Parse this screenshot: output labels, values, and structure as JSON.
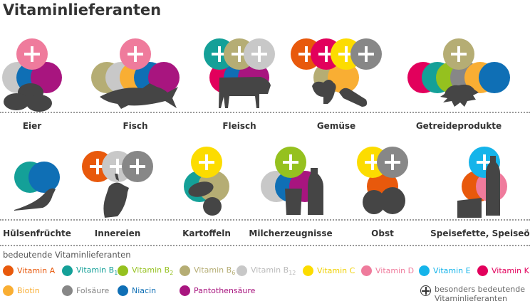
{
  "title": "Vitaminlieferanten",
  "vitamins": {
    "A": {
      "label": "Vitamin A",
      "color": "#e8590c"
    },
    "B1": {
      "label": "Vitamin B",
      "sub": "1",
      "color": "#14a098"
    },
    "B2": {
      "label": "Vitamin B",
      "sub": "2",
      "color": "#95c11f"
    },
    "B6": {
      "label": "Vitamin B",
      "sub": "6",
      "color": "#b5ad74"
    },
    "B12": {
      "label": "Vitamin B",
      "sub": "12",
      "color": "#c8c8c8"
    },
    "C": {
      "label": "Vitamin C",
      "color": "#fcdc00"
    },
    "D": {
      "label": "Vitamin D",
      "color": "#ef7b9c"
    },
    "E": {
      "label": "Vitamin E",
      "color": "#15b4ea"
    },
    "K": {
      "label": "Vitamin K",
      "color": "#e2005c"
    },
    "Biotin": {
      "label": "Biotin",
      "color": "#f9ae33"
    },
    "Fol": {
      "label": "Folsäure",
      "color": "#878787"
    },
    "Niacin": {
      "label": "Niacin",
      "color": "#0f6fb5"
    },
    "Panto": {
      "label": "Pantothensäure",
      "color": "#a8157f"
    }
  },
  "foods": [
    {
      "name": "Eier",
      "icon": "eggs-icon",
      "special": [
        "D"
      ],
      "sources": [
        "B12",
        "Niacin",
        "Panto"
      ]
    },
    {
      "name": "Fisch",
      "icon": "fish-icon",
      "special": [
        "D"
      ],
      "sources": [
        "B6",
        "B12",
        "Biotin",
        "Niacin",
        "Panto"
      ]
    },
    {
      "name": "Fleisch",
      "icon": "cow-icon",
      "special": [
        "B1",
        "B6",
        "B12"
      ],
      "sources": [
        "K",
        "Niacin",
        "Panto"
      ]
    },
    {
      "name": "Gemüse",
      "icon": "vegetables-icon",
      "special": [
        "A",
        "K",
        "C",
        "Fol"
      ],
      "sources": [
        "B6",
        "Biotin"
      ]
    },
    {
      "name": "Getreideprodukte",
      "icon": "grain-icon",
      "special": [
        "B6"
      ],
      "sources": [
        "K",
        "B1",
        "B2",
        "Fol",
        "Biotin",
        "Niacin"
      ]
    },
    {
      "name": "Hülsenfrüchte",
      "icon": "legumes-icon",
      "special": [],
      "sources": [
        "B1",
        "Niacin"
      ]
    },
    {
      "name": "Innereien",
      "icon": "organ-icon",
      "special": [
        "A",
        "B12",
        "Fol"
      ],
      "sources": []
    },
    {
      "name": "Kartoffeln",
      "icon": "potatoes-icon",
      "special": [
        "C"
      ],
      "sources": [
        "B1",
        "B6"
      ]
    },
    {
      "name": "Milcherzeugnisse",
      "icon": "milk-icon",
      "special": [
        "B2"
      ],
      "sources": [
        "B12",
        "Niacin",
        "Panto"
      ]
    },
    {
      "name": "Obst",
      "icon": "fruit-icon",
      "special": [
        "C",
        "Fol"
      ],
      "sources": [
        "A"
      ]
    },
    {
      "name": "Speisefette, Speiseöle",
      "icon": "fats-oils-icon",
      "special": [
        "E"
      ],
      "sources": [
        "A",
        "D"
      ]
    }
  ],
  "legend": {
    "heading": "bedeutende Vitaminlieferanten",
    "order": [
      "A",
      "B1",
      "B2",
      "B6",
      "B12",
      "C",
      "D",
      "E",
      "K",
      "Biotin",
      "Fol",
      "Niacin",
      "Panto"
    ],
    "note": [
      "besonders bedeutende",
      "Vitaminlieferanten"
    ]
  }
}
